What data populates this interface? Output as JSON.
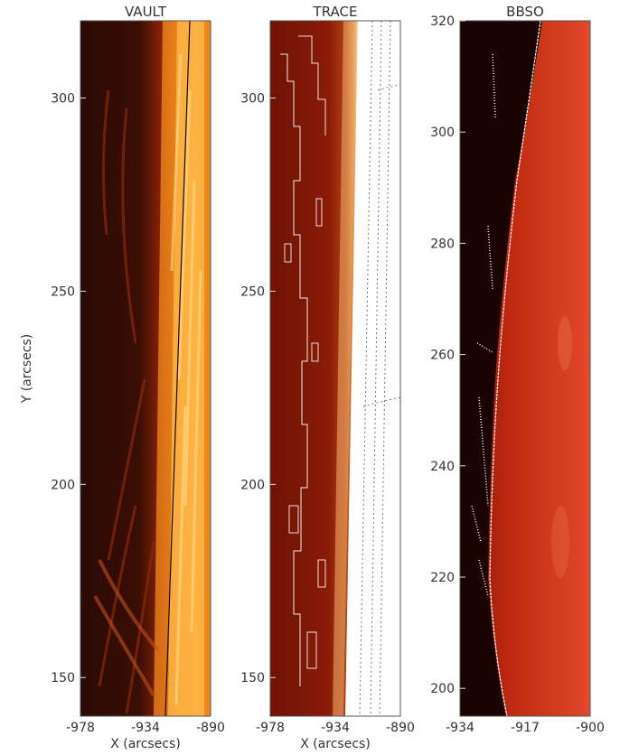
{
  "chart_data": [
    {
      "type": "heatmap",
      "title": "VAULT",
      "xlabel": "X (arcsecs)",
      "ylabel": "Y (arcsecs)",
      "xlim": [
        -978,
        -890
      ],
      "ylim": [
        140,
        320
      ],
      "xticks": [
        "-978",
        "-934",
        "-890"
      ],
      "yticks": [
        {
          "value": 150,
          "label": "150"
        },
        {
          "value": 200,
          "label": "200"
        },
        {
          "value": 250,
          "label": "250"
        },
        {
          "value": 300,
          "label": "300"
        }
      ],
      "overlay": "solar limb line",
      "colors": {
        "dark": "#2a0a04",
        "mid": "#b83a08",
        "bright": "#ffd060"
      }
    },
    {
      "type": "heatmap",
      "title": "TRACE",
      "xlabel": "X (arcsecs)",
      "ylabel": "",
      "xlim": [
        -978,
        -890
      ],
      "ylim": [
        140,
        320
      ],
      "xticks": [
        "-978",
        "-934",
        "-890"
      ],
      "yticks": [
        {
          "value": 150,
          "label": "150"
        },
        {
          "value": 200,
          "label": "200"
        },
        {
          "value": 250,
          "label": "250"
        },
        {
          "value": 300,
          "label": "300"
        }
      ],
      "overlay": "white contours, dotted grid lines",
      "colors": {
        "dark": "#6e1205",
        "mid": "#a0300a",
        "bright": "#ffe6b0"
      }
    },
    {
      "type": "heatmap",
      "title": "BBSO",
      "xlabel": "",
      "ylabel": "",
      "xlim": [
        -934,
        -900
      ],
      "ylim": [
        195,
        320
      ],
      "xticks": [
        "-934",
        "-917",
        "-900"
      ],
      "yticks": [
        {
          "value": 200,
          "label": "200"
        },
        {
          "value": 220,
          "label": "220"
        },
        {
          "value": 240,
          "label": "240"
        },
        {
          "value": 260,
          "label": "260"
        },
        {
          "value": 280,
          "label": "280"
        },
        {
          "value": 300,
          "label": "300"
        },
        {
          "value": 320,
          "label": "320"
        }
      ],
      "overlay": "white contours",
      "colors": {
        "dark": "#1a0402",
        "mid": "#c02a10",
        "bright": "#e85030"
      }
    }
  ]
}
